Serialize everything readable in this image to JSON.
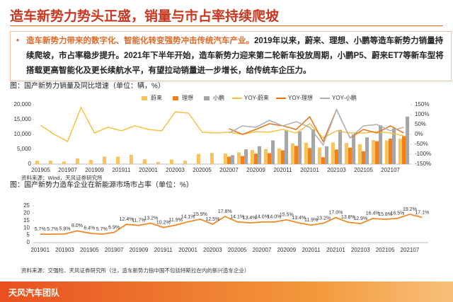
{
  "header": {
    "title": "造车新势力势头正盛，销量与市占率持续爬坡"
  },
  "body": {
    "highlight": "造车新势力带来的数字化、智能化转变强势冲击传统汽车产业。",
    "text": "2019年以来，蔚来、理想、小鹏等造车新势力销量持续爬坡，市占率稳步提升。2021年下半年开始，造车新势力迎来第二轮新车投放周期，小鹏P5、蔚来ET7等新车型将搭载更高智能化及更长续航水平，有望拉动销量进一步增长，给传统车企压力。"
  },
  "footer": {
    "team": "天风汽车团队"
  },
  "chart_data": [
    {
      "type": "combo",
      "title": "图：国产新势力销量及同比增速（单位：辆，%）",
      "source": "资料来源：Wind，天风证券研究所",
      "categories": [
        "201905",
        null,
        "201907",
        null,
        "201909",
        null,
        "201911",
        null,
        "202001",
        null,
        "202003",
        null,
        "202005",
        null,
        "202007",
        null,
        "202009",
        null,
        "202011",
        null,
        "202101",
        null,
        "202103",
        null,
        "202105",
        null,
        "202107",
        null
      ],
      "ylim": [
        0,
        20000
      ],
      "yticks": [
        0,
        {
          "value": 5000,
          "label": "5,000"
        },
        {
          "value": 10000,
          "label": "10,000"
        },
        {
          "value": 15000,
          "label": "15,000"
        },
        {
          "value": 20000,
          "label": "20,000"
        }
      ],
      "y2lim": [
        -150,
        150
      ],
      "y2ticks": [
        {
          "value": -150,
          "label": "-150%"
        },
        {
          "value": -100,
          "label": "-100%"
        },
        {
          "value": -50,
          "label": "-50%"
        },
        {
          "value": 0,
          "label": "0%"
        },
        {
          "value": 50,
          "label": "50%"
        },
        {
          "value": 100,
          "label": "100%"
        },
        {
          "value": 150,
          "label": "150%"
        }
      ],
      "series": [
        {
          "name": "蔚来",
          "type": "bar",
          "color": "#f7c35c",
          "values": [
            1089,
            1170,
            837,
            1943,
            1383,
            2526,
            2528,
            3170,
            1598,
            707,
            1533,
            1155,
            3436,
            3740,
            3533,
            3965,
            4708,
            5055,
            5291,
            7007,
            7225,
            5578,
            7257,
            7102,
            6711,
            8083,
            7931,
            8500
          ]
        },
        {
          "name": "理想",
          "type": "bar",
          "color": "#f07f1c",
          "values": [
            null,
            null,
            null,
            null,
            null,
            null,
            null,
            null,
            null,
            null,
            null,
            null,
            null,
            null,
            2516,
            2711,
            3504,
            3692,
            4646,
            6126,
            5379,
            2300,
            4900,
            5539,
            4323,
            7713,
            8589,
            9433
          ]
        },
        {
          "name": "小鹏",
          "type": "bar",
          "color": "#a6a6a6",
          "values": [
            null,
            null,
            null,
            null,
            null,
            null,
            null,
            null,
            null,
            null,
            null,
            null,
            null,
            null,
            3000,
            5000,
            6000,
            8000,
            11500,
            11000,
            11700,
            6000,
            11500,
            10000,
            9000,
            13000,
            12000,
            16000
          ]
        },
        {
          "name": "YOY-蔚来",
          "type": "line",
          "axis": "y2",
          "color": "#f5c242",
          "values": [
            46,
            0,
            -36,
            136,
            7,
            36,
            18,
            43,
            25,
            18,
            114,
            107,
            11,
            7,
            11,
            0,
            14,
            11,
            25,
            7,
            54,
            -18,
            18,
            7,
            7,
            14,
            7,
            -7
          ]
        },
        {
          "name": "YOY-理想",
          "type": "line",
          "axis": "y2",
          "color": "#e8741a",
          "values": [
            null,
            null,
            null,
            null,
            null,
            null,
            null,
            null,
            null,
            null,
            null,
            null,
            null,
            null,
            29,
            0,
            25,
            54,
            43,
            25,
            89,
            -36,
            125,
            -18,
            25,
            7,
            43,
            7
          ]
        },
        {
          "name": "YOY-小鹏",
          "type": "line",
          "axis": "y2",
          "color": "#b0b0b0",
          "values": [
            null,
            null,
            null,
            null,
            null,
            null,
            null,
            null,
            null,
            null,
            null,
            null,
            null,
            null,
            7,
            43,
            36,
            71,
            43,
            64,
            36,
            -54,
            125,
            -18,
            43,
            50,
            18,
            36
          ]
        }
      ]
    },
    {
      "type": "line",
      "title": "图：国产新势力造车企业在新能源市场市占率（单位：%）",
      "source": "资料来源：交强险、天风证券研究所（注，造车新势力指中国不包括特斯拉在内的新兴造车企业）",
      "categories": [
        "201901",
        null,
        "201903",
        null,
        "201905",
        null,
        "201907",
        null,
        "201909",
        null,
        "201911",
        null,
        "202001",
        null,
        "202003",
        null,
        "202005",
        null,
        "202007",
        null,
        "202009",
        null,
        "202011",
        null,
        "202101",
        null,
        "202103",
        null,
        "202105",
        null,
        "202107",
        null
      ],
      "ylim": [
        0,
        25
      ],
      "yticks": [
        0,
        5,
        10,
        15,
        20,
        25
      ],
      "color": "#f08a24",
      "values": [
        5.7,
        5.7,
        5.9,
        8.0,
        6.4,
        5.7,
        6.9,
        12.4,
        11.7,
        13.2,
        10.2,
        11.9,
        14.1,
        15.9,
        12.5,
        17.8,
        14.1,
        13.4,
        14.0,
        14.0,
        15.5,
        13.4,
        11.9,
        13.2,
        17.0,
        13.8,
        12.9,
        16.4,
        15.8,
        16.5,
        19.2,
        17.1
      ],
      "value_labels": [
        "5.7%",
        "5.7%",
        "5.9%",
        "8.0%",
        "6.4%",
        "5.7%",
        "6.9%",
        "12.4%",
        "11.7%",
        "13.2%",
        "10.2%",
        "11.9%",
        "14.1%",
        "15.9%",
        "12.5%",
        "17.8%",
        "14.1%",
        "13.4%",
        "14.0%",
        "14.0%",
        "15.5%",
        "13.4%",
        "11.9%",
        "13.2%",
        "17.0%",
        "13.8%",
        "12.9%",
        "16.4%",
        "15.8%",
        "16.5%",
        "19.2%",
        "17.1%"
      ]
    }
  ]
}
